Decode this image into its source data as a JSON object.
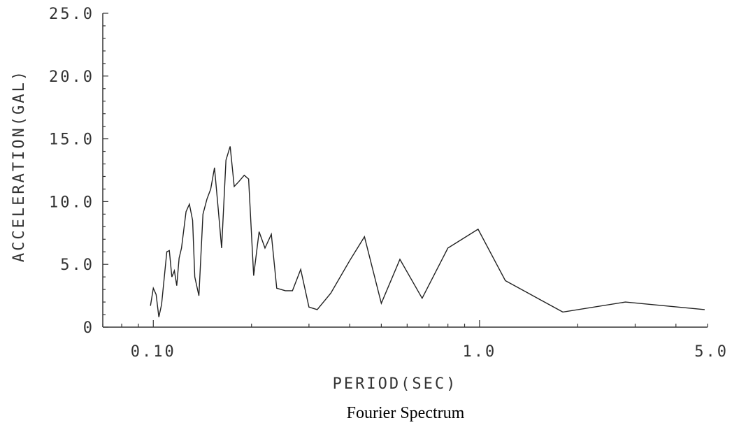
{
  "chart_data": {
    "type": "line",
    "title": "",
    "caption": "Fourier Spectrum",
    "xlabel": "PERIOD(SEC)",
    "ylabel": "ACCELERATION(GAL)",
    "xscale": "log",
    "xlim": [
      0.07,
      5.0
    ],
    "ylim": [
      0,
      25
    ],
    "xticks": [
      {
        "value": 0.1,
        "label": "0.10"
      },
      {
        "value": 1.0,
        "label": "1.0"
      },
      {
        "value": 5.0,
        "label": "5.0"
      }
    ],
    "yticks": [
      {
        "value": 0,
        "label": "0"
      },
      {
        "value": 5,
        "label": "5.0"
      },
      {
        "value": 10,
        "label": "10.0"
      },
      {
        "value": 15,
        "label": "15.0"
      },
      {
        "value": 20,
        "label": "20.0"
      },
      {
        "value": 25,
        "label": "25.0"
      }
    ],
    "grid": false,
    "series": [
      {
        "color": "#222222",
        "points": [
          [
            0.098,
            1.7
          ],
          [
            0.1,
            3.1
          ],
          [
            0.102,
            2.6
          ],
          [
            0.104,
            0.8
          ],
          [
            0.106,
            1.8
          ],
          [
            0.11,
            6.0
          ],
          [
            0.112,
            6.1
          ],
          [
            0.114,
            4.0
          ],
          [
            0.116,
            4.5
          ],
          [
            0.118,
            3.3
          ],
          [
            0.12,
            5.5
          ],
          [
            0.122,
            6.3
          ],
          [
            0.126,
            9.2
          ],
          [
            0.129,
            9.8
          ],
          [
            0.132,
            8.5
          ],
          [
            0.134,
            4.0
          ],
          [
            0.138,
            2.5
          ],
          [
            0.142,
            9.0
          ],
          [
            0.146,
            10.2
          ],
          [
            0.15,
            11.0
          ],
          [
            0.154,
            12.7
          ],
          [
            0.158,
            9.5
          ],
          [
            0.162,
            6.3
          ],
          [
            0.167,
            13.3
          ],
          [
            0.172,
            14.4
          ],
          [
            0.177,
            11.2
          ],
          [
            0.183,
            11.6
          ],
          [
            0.19,
            12.1
          ],
          [
            0.196,
            11.8
          ],
          [
            0.203,
            4.1
          ],
          [
            0.211,
            7.6
          ],
          [
            0.22,
            6.3
          ],
          [
            0.23,
            7.4
          ],
          [
            0.239,
            3.1
          ],
          [
            0.254,
            2.9
          ],
          [
            0.267,
            2.9
          ],
          [
            0.283,
            4.6
          ],
          [
            0.3,
            1.6
          ],
          [
            0.318,
            1.4
          ],
          [
            0.35,
            2.7
          ],
          [
            0.4,
            5.3
          ],
          [
            0.444,
            7.2
          ],
          [
            0.5,
            1.9
          ],
          [
            0.57,
            5.4
          ],
          [
            0.667,
            2.3
          ],
          [
            0.8,
            6.3
          ],
          [
            0.99,
            7.8
          ],
          [
            1.2,
            3.7
          ],
          [
            1.8,
            1.2
          ],
          [
            2.8,
            2.0
          ],
          [
            4.9,
            1.4
          ]
        ]
      }
    ]
  }
}
